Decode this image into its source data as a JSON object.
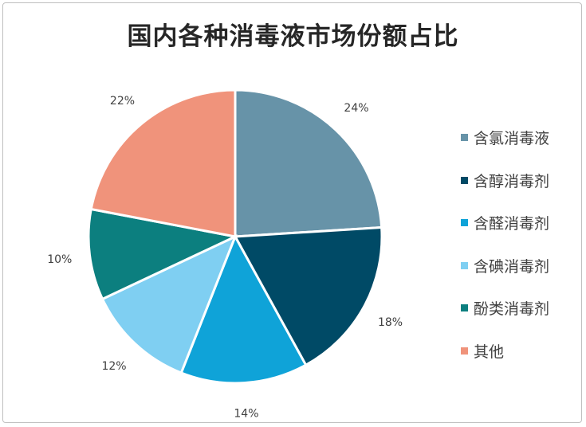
{
  "chart_data": {
    "type": "pie",
    "title": "国内各种消毒液市场份额占比",
    "categories": [
      "含氯消毒液",
      "含醇消毒剂",
      "含醛消毒剂",
      "含碘消毒剂",
      "酚类消毒剂",
      "其他"
    ],
    "values": [
      24,
      18,
      14,
      12,
      10,
      22
    ],
    "labels": [
      "24%",
      "18%",
      "14%",
      "12%",
      "10%",
      "22%"
    ],
    "colors": [
      "#6793a8",
      "#004a66",
      "#0fa3d8",
      "#7fcff2",
      "#0c7f7f",
      "#f0937b"
    ],
    "legend_position": "right"
  }
}
